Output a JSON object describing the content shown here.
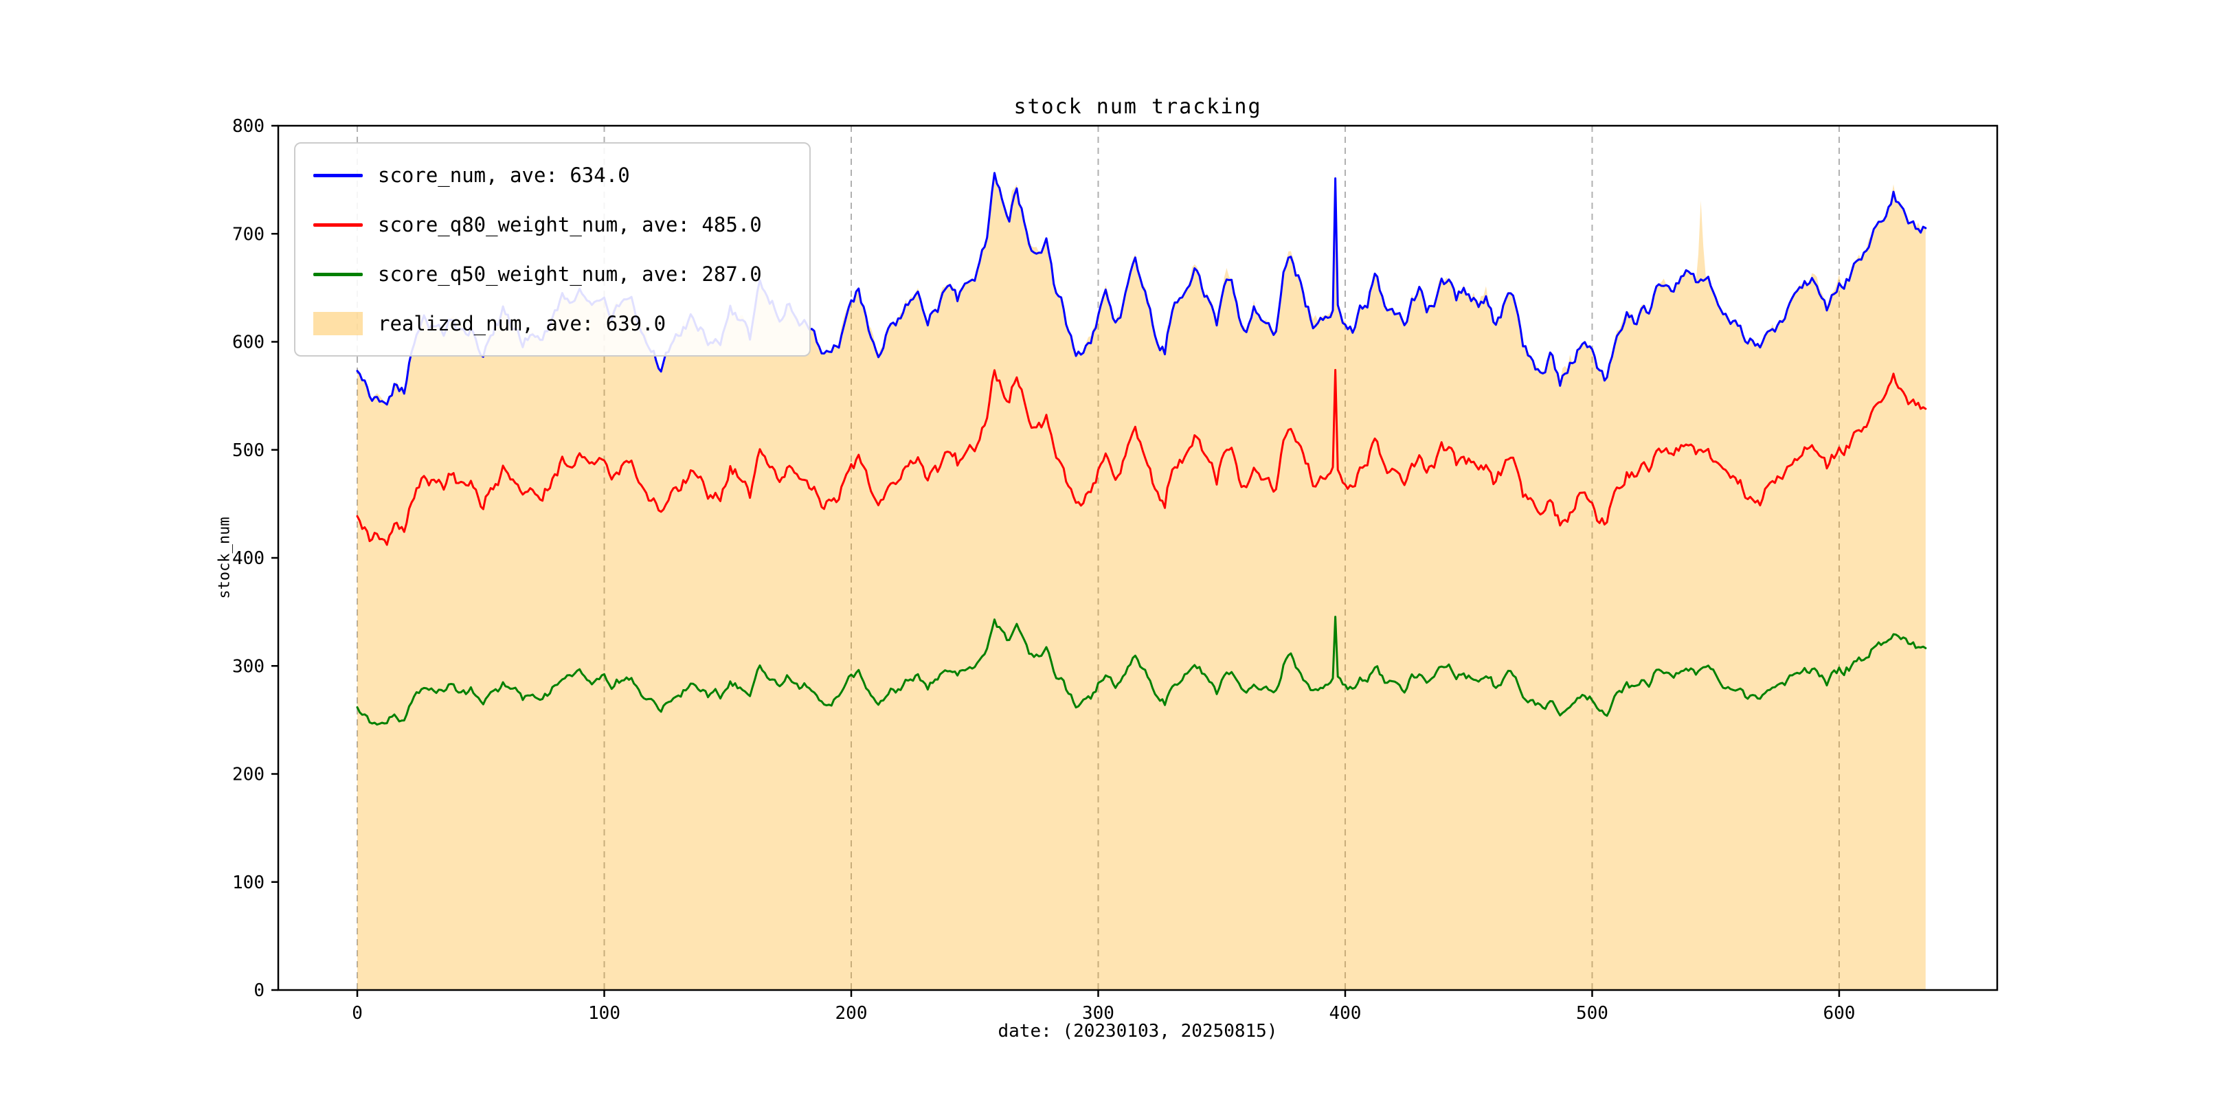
{
  "figure": {
    "background": "#ffffff",
    "spine_color": "#000000",
    "grid_color": "#b0b0b0",
    "tick_color": "#000000"
  },
  "legend": {
    "position": "upper-left",
    "entries": [
      {
        "label": "score_num, ave: 634.0",
        "swatch": "line",
        "color": "#0000ff"
      },
      {
        "label": "score_q80_weight_num, ave: 485.0",
        "swatch": "line",
        "color": "#ff0000"
      },
      {
        "label": "score_q50_weight_num, ave: 287.0",
        "swatch": "line",
        "color": "#008000"
      },
      {
        "label": "realized_num, ave: 639.0",
        "swatch": "patch",
        "color": "rgba(255,165,0,0.35)"
      }
    ]
  },
  "chart_data": {
    "type": "line",
    "title": "stock num tracking",
    "xlabel": "date: (20230103, 20250815)",
    "ylabel": "stock_num",
    "xlim": [
      -32,
      664
    ],
    "ylim": [
      0,
      800
    ],
    "x_ticks": [
      0,
      100,
      200,
      300,
      400,
      500,
      600
    ],
    "y_ticks": [
      0,
      100,
      200,
      300,
      400,
      500,
      600,
      700,
      800
    ],
    "grid": {
      "axis": "x",
      "style": "dashed",
      "color": "#b0b0b0"
    },
    "n_points": 636,
    "seed": 20230103,
    "noise": {
      "shared_step": 11,
      "shared_decay": 0.72
    },
    "series": [
      {
        "name": "score_num",
        "label": "score_num, ave: 634.0",
        "ave": 634.0,
        "color": "#0000ff",
        "style": "line",
        "keyframes": [
          [
            0,
            575
          ],
          [
            4,
            560
          ],
          [
            8,
            545
          ],
          [
            11,
            540
          ],
          [
            15,
            558
          ],
          [
            19,
            552
          ],
          [
            23,
            600
          ],
          [
            27,
            617
          ],
          [
            31,
            612
          ],
          [
            35,
            605
          ],
          [
            39,
            622
          ],
          [
            43,
            606
          ],
          [
            47,
            612
          ],
          [
            51,
            592
          ],
          [
            55,
            610
          ],
          [
            59,
            628
          ],
          [
            63,
            610
          ],
          [
            67,
            600
          ],
          [
            71,
            614
          ],
          [
            75,
            601
          ],
          [
            79,
            620
          ],
          [
            83,
            635
          ],
          [
            87,
            626
          ],
          [
            91,
            640
          ],
          [
            95,
            633
          ],
          [
            99,
            641
          ],
          [
            103,
            625
          ],
          [
            107,
            632
          ],
          [
            111,
            634
          ],
          [
            115,
            607
          ],
          [
            119,
            597
          ],
          [
            123,
            580
          ],
          [
            127,
            592
          ],
          [
            131,
            607
          ],
          [
            135,
            618
          ],
          [
            139,
            611
          ],
          [
            143,
            603
          ],
          [
            147,
            602
          ],
          [
            151,
            638
          ],
          [
            155,
            617
          ],
          [
            159,
            602
          ],
          [
            163,
            657
          ],
          [
            167,
            641
          ],
          [
            171,
            629
          ],
          [
            175,
            645
          ],
          [
            179,
            627
          ],
          [
            183,
            615
          ],
          [
            187,
            599
          ],
          [
            191,
            586
          ],
          [
            195,
            598
          ],
          [
            199,
            629
          ],
          [
            203,
            648
          ],
          [
            207,
            616
          ],
          [
            211,
            586
          ],
          [
            215,
            612
          ],
          [
            219,
            621
          ],
          [
            223,
            636
          ],
          [
            227,
            640
          ],
          [
            231,
            624
          ],
          [
            235,
            633
          ],
          [
            239,
            648
          ],
          [
            243,
            636
          ],
          [
            247,
            651
          ],
          [
            251,
            667
          ],
          [
            255,
            690
          ],
          [
            258,
            748
          ],
          [
            261,
            730
          ],
          [
            264,
            720
          ],
          [
            267,
            744
          ],
          [
            270,
            712
          ],
          [
            273,
            680
          ],
          [
            276,
            682
          ],
          [
            279,
            691
          ],
          [
            282,
            655
          ],
          [
            285,
            640
          ],
          [
            288,
            610
          ],
          [
            291,
            585
          ],
          [
            294,
            592
          ],
          [
            297,
            605
          ],
          [
            300,
            622
          ],
          [
            303,
            654
          ],
          [
            306,
            630
          ],
          [
            309,
            621
          ],
          [
            312,
            658
          ],
          [
            315,
            669
          ],
          [
            318,
            644
          ],
          [
            321,
            631
          ],
          [
            324,
            603
          ],
          [
            327,
            592
          ],
          [
            330,
            634
          ],
          [
            333,
            645
          ],
          [
            336,
            652
          ],
          [
            339,
            669
          ],
          [
            342,
            650
          ],
          [
            345,
            637
          ],
          [
            348,
            618
          ],
          [
            351,
            641
          ],
          [
            354,
            654
          ],
          [
            357,
            627
          ],
          [
            360,
            617
          ],
          [
            363,
            634
          ],
          [
            366,
            626
          ],
          [
            369,
            617
          ],
          [
            372,
            607
          ],
          [
            375,
            662
          ],
          [
            378,
            675
          ],
          [
            381,
            659
          ],
          [
            384,
            633
          ],
          [
            387,
            616
          ],
          [
            390,
            624
          ],
          [
            393,
            617
          ],
          [
            395,
            628
          ],
          [
            396,
            750
          ],
          [
            397,
            635
          ],
          [
            400,
            615
          ],
          [
            403,
            611
          ],
          [
            406,
            637
          ],
          [
            409,
            631
          ],
          [
            412,
            659
          ],
          [
            415,
            639
          ],
          [
            418,
            628
          ],
          [
            421,
            626
          ],
          [
            424,
            619
          ],
          [
            427,
            636
          ],
          [
            430,
            645
          ],
          [
            433,
            629
          ],
          [
            436,
            638
          ],
          [
            439,
            668
          ],
          [
            442,
            660
          ],
          [
            445,
            642
          ],
          [
            448,
            650
          ],
          [
            451,
            636
          ],
          [
            454,
            632
          ],
          [
            457,
            640
          ],
          [
            460,
            621
          ],
          [
            463,
            626
          ],
          [
            466,
            649
          ],
          [
            469,
            636
          ],
          [
            472,
            598
          ],
          [
            475,
            582
          ],
          [
            478,
            571
          ],
          [
            481,
            576
          ],
          [
            484,
            588
          ],
          [
            487,
            566
          ],
          [
            490,
            578
          ],
          [
            493,
            590
          ],
          [
            496,
            600
          ],
          [
            499,
            589
          ],
          [
            502,
            573
          ],
          [
            505,
            566
          ],
          [
            508,
            588
          ],
          [
            511,
            607
          ],
          [
            514,
            621
          ],
          [
            517,
            616
          ],
          [
            520,
            631
          ],
          [
            523,
            628
          ],
          [
            526,
            644
          ],
          [
            529,
            651
          ],
          [
            532,
            648
          ],
          [
            535,
            654
          ],
          [
            538,
            661
          ],
          [
            541,
            668
          ],
          [
            544,
            656
          ],
          [
            547,
            661
          ],
          [
            550,
            650
          ],
          [
            553,
            638
          ],
          [
            556,
            629
          ],
          [
            559,
            618
          ],
          [
            562,
            600
          ],
          [
            565,
            608
          ],
          [
            568,
            596
          ],
          [
            571,
            602
          ],
          [
            574,
            612
          ],
          [
            577,
            617
          ],
          [
            580,
            632
          ],
          [
            583,
            649
          ],
          [
            586,
            654
          ],
          [
            589,
            659
          ],
          [
            592,
            648
          ],
          [
            595,
            633
          ],
          [
            598,
            642
          ],
          [
            601,
            652
          ],
          [
            604,
            661
          ],
          [
            607,
            679
          ],
          [
            610,
            688
          ],
          [
            613,
            697
          ],
          [
            616,
            709
          ],
          [
            619,
            716
          ],
          [
            622,
            735
          ],
          [
            625,
            727
          ],
          [
            628,
            712
          ],
          [
            631,
            705
          ],
          [
            635,
            707
          ]
        ],
        "own_noise": 0
      },
      {
        "name": "score_q80_weight_num",
        "label": "score_q80_weight_num, ave: 485.0",
        "ave": 485.0,
        "color": "#ff0000",
        "style": "line",
        "derived_from": "score_num",
        "ratio": 0.765,
        "shared_noise": 0.78,
        "own_noise": 7
      },
      {
        "name": "score_q50_weight_num",
        "label": "score_q50_weight_num, ave: 287.0",
        "ave": 287.0,
        "color": "#008000",
        "style": "line",
        "derived_from": "score_num",
        "ratio": 0.4527,
        "shared_noise": 0.45,
        "own_noise": 5.5
      },
      {
        "name": "realized_num",
        "label": "realized_num, ave: 639.0",
        "ave": 639.0,
        "color": "#ffa500",
        "fill_alpha": 0.3,
        "style": "area",
        "derived_from": "score_num",
        "offset_noise": 9,
        "spikes": [
          [
            265,
            14
          ],
          [
            338,
            10
          ],
          [
            352,
            8
          ],
          [
            396,
            6
          ],
          [
            544,
            70
          ],
          [
            612,
            6
          ],
          [
            622,
            7
          ]
        ]
      }
    ]
  }
}
